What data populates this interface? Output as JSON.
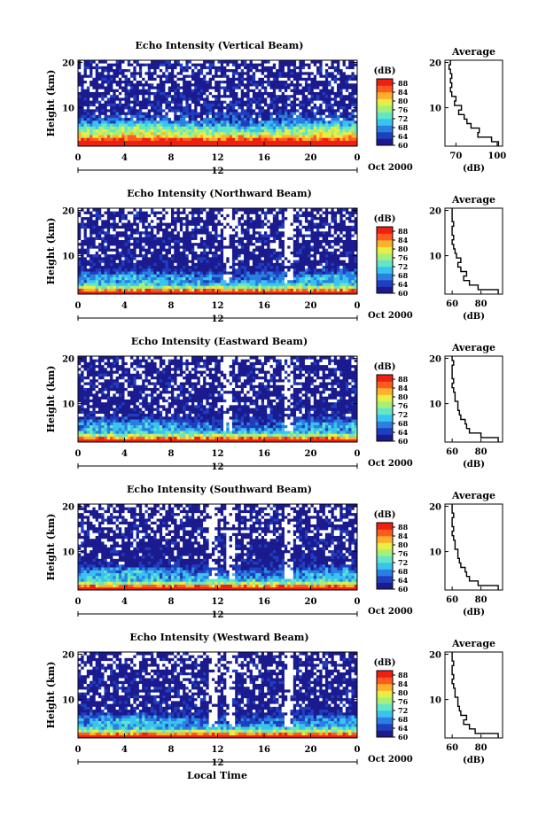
{
  "figure": {
    "x_axis_label": "Local Time",
    "colors": {
      "colormap": [
        "#1b1b8f",
        "#1f3fbf",
        "#2a7fe0",
        "#39c3f0",
        "#63e6c8",
        "#a6f07a",
        "#e8ee46",
        "#ffb02a",
        "#ff5a1f",
        "#f02010"
      ],
      "background": "#ffffff",
      "missing": "#ffffff"
    }
  },
  "chart_data": [
    {
      "type": "heatmap",
      "title": "Echo Intensity (Vertical Beam)",
      "xlabel": "",
      "ylabel": "Height (km)",
      "x_ticks": [
        "0",
        "4",
        "8",
        "12",
        "16",
        "20",
        "0"
      ],
      "xlim": [
        0,
        24
      ],
      "y_ticks": [
        "10",
        "20"
      ],
      "ylim": [
        1.5,
        20.5
      ],
      "date_label": "Oct 2000",
      "bar_label": "12",
      "colorbar": {
        "title": "(dB)",
        "tick_labels": [
          "60",
          "64",
          "68",
          "72",
          "76",
          "80",
          "84",
          "88"
        ],
        "range": [
          60,
          90
        ]
      },
      "intensity": {
        "surface": 100,
        "scale_height_km": 2.6,
        "floor": 60,
        "gaps": []
      },
      "average_profile": {
        "title": "Average",
        "xlabel": "(dB)",
        "x_ticks": [
          "70",
          "100"
        ],
        "xlim": [
          62,
          104
        ],
        "y_ticks": [
          "10",
          "20"
        ],
        "ylim": [
          1.5,
          20.5
        ],
        "height_km": [
          2,
          3,
          4,
          5,
          6,
          7,
          8,
          9,
          10,
          11,
          12,
          13,
          14,
          15,
          16,
          17,
          18,
          19,
          20
        ],
        "db": [
          101,
          96,
          86,
          87,
          81,
          78,
          76,
          72,
          74,
          69,
          70,
          67,
          66,
          67,
          66,
          67,
          66,
          65,
          66
        ]
      }
    },
    {
      "type": "heatmap",
      "title": "Echo Intensity (Northward Beam)",
      "xlabel": "",
      "ylabel": "Height (km)",
      "x_ticks": [
        "0",
        "4",
        "8",
        "12",
        "16",
        "20",
        "0"
      ],
      "xlim": [
        0,
        24
      ],
      "y_ticks": [
        "10",
        "20"
      ],
      "ylim": [
        1.5,
        20.5
      ],
      "date_label": "Oct 2000",
      "bar_label": "12",
      "colorbar": {
        "title": "(dB)",
        "tick_labels": [
          "60",
          "64",
          "68",
          "72",
          "76",
          "80",
          "84",
          "88"
        ],
        "range": [
          60,
          90
        ]
      },
      "intensity": {
        "surface": 92,
        "scale_height_km": 1.6,
        "floor": 60,
        "gaps": [
          12.8,
          18.2
        ]
      },
      "average_profile": {
        "title": "Average",
        "xlabel": "(dB)",
        "x_ticks": [
          "60",
          "80"
        ],
        "xlim": [
          55,
          95
        ],
        "y_ticks": [
          "10",
          "20"
        ],
        "ylim": [
          1.5,
          20.5
        ],
        "height_km": [
          2,
          3,
          4,
          5,
          6,
          7,
          8,
          9,
          10,
          11,
          12,
          13,
          14,
          15,
          16,
          17,
          18,
          19,
          20
        ],
        "db": [
          92,
          78,
          72,
          68,
          70,
          66,
          64,
          66,
          63,
          62,
          61,
          60,
          61,
          60,
          60,
          61,
          60,
          60,
          60
        ]
      }
    },
    {
      "type": "heatmap",
      "title": "Echo Intensity (Eastward Beam)",
      "xlabel": "",
      "ylabel": "Height (km)",
      "x_ticks": [
        "0",
        "4",
        "8",
        "12",
        "16",
        "20",
        "0"
      ],
      "xlim": [
        0,
        24
      ],
      "y_ticks": [
        "10",
        "20"
      ],
      "ylim": [
        1.5,
        20.5
      ],
      "date_label": "Oct 2000",
      "bar_label": "12",
      "colorbar": {
        "title": "(dB)",
        "tick_labels": [
          "60",
          "64",
          "68",
          "72",
          "76",
          "80",
          "84",
          "88"
        ],
        "range": [
          60,
          90
        ]
      },
      "intensity": {
        "surface": 92,
        "scale_height_km": 1.6,
        "floor": 60,
        "gaps": [
          12.8,
          18.2
        ]
      },
      "average_profile": {
        "title": "Average",
        "xlabel": "(dB)",
        "x_ticks": [
          "60",
          "80"
        ],
        "xlim": [
          55,
          95
        ],
        "y_ticks": [
          "10",
          "20"
        ],
        "ylim": [
          1.5,
          20.5
        ],
        "height_km": [
          2,
          3,
          4,
          5,
          6,
          7,
          8,
          9,
          10,
          11,
          12,
          13,
          14,
          15,
          16,
          17,
          18,
          19,
          20
        ],
        "db": [
          92,
          80,
          72,
          70,
          69,
          66,
          65,
          64,
          64,
          62,
          62,
          61,
          60,
          61,
          60,
          60,
          60,
          61,
          60
        ]
      }
    },
    {
      "type": "heatmap",
      "title": "Echo Intensity (Southward Beam)",
      "xlabel": "",
      "ylabel": "Height (km)",
      "x_ticks": [
        "0",
        "4",
        "8",
        "12",
        "16",
        "20",
        "0"
      ],
      "xlim": [
        0,
        24
      ],
      "y_ticks": [
        "10",
        "20"
      ],
      "ylim": [
        1.5,
        20.5
      ],
      "date_label": "Oct 2000",
      "bar_label": "12",
      "colorbar": {
        "title": "(dB)",
        "tick_labels": [
          "60",
          "64",
          "68",
          "72",
          "76",
          "80",
          "84",
          "88"
        ],
        "range": [
          60,
          90
        ]
      },
      "intensity": {
        "surface": 92,
        "scale_height_km": 1.6,
        "floor": 60,
        "gaps": [
          11.6,
          13.2,
          18.2
        ]
      },
      "average_profile": {
        "title": "Average",
        "xlabel": "(dB)",
        "x_ticks": [
          "60",
          "80"
        ],
        "xlim": [
          55,
          95
        ],
        "y_ticks": [
          "10",
          "20"
        ],
        "ylim": [
          1.5,
          20.5
        ],
        "height_km": [
          2,
          3,
          4,
          5,
          6,
          7,
          8,
          9,
          10,
          11,
          12,
          13,
          14,
          15,
          16,
          17,
          18,
          19,
          20
        ],
        "db": [
          92,
          78,
          72,
          70,
          69,
          66,
          65,
          64,
          64,
          62,
          62,
          61,
          60,
          61,
          60,
          60,
          61,
          60,
          60
        ]
      }
    },
    {
      "type": "heatmap",
      "title": "Echo Intensity (Westward Beam)",
      "xlabel": "",
      "ylabel": "Height (km)",
      "x_ticks": [
        "0",
        "4",
        "8",
        "12",
        "16",
        "20",
        "0"
      ],
      "xlim": [
        0,
        24
      ],
      "y_ticks": [
        "10",
        "20"
      ],
      "ylim": [
        1.5,
        20.5
      ],
      "date_label": "Oct 2000",
      "bar_label": "12",
      "colorbar": {
        "title": "(dB)",
        "tick_labels": [
          "60",
          "64",
          "68",
          "72",
          "76",
          "80",
          "84",
          "88"
        ],
        "range": [
          60,
          90
        ]
      },
      "intensity": {
        "surface": 92,
        "scale_height_km": 1.6,
        "floor": 60,
        "gaps": [
          11.6,
          13.2,
          18.2
        ]
      },
      "average_profile": {
        "title": "Average",
        "xlabel": "(dB)",
        "x_ticks": [
          "60",
          "80"
        ],
        "xlim": [
          55,
          95
        ],
        "y_ticks": [
          "10",
          "20"
        ],
        "ylim": [
          1.5,
          20.5
        ],
        "height_km": [
          2,
          3,
          4,
          5,
          6,
          7,
          8,
          9,
          10,
          11,
          12,
          13,
          14,
          15,
          16,
          17,
          18,
          19,
          20
        ],
        "db": [
          92,
          76,
          72,
          68,
          70,
          66,
          65,
          64,
          64,
          62,
          62,
          61,
          60,
          61,
          60,
          60,
          61,
          60,
          60
        ]
      }
    }
  ]
}
